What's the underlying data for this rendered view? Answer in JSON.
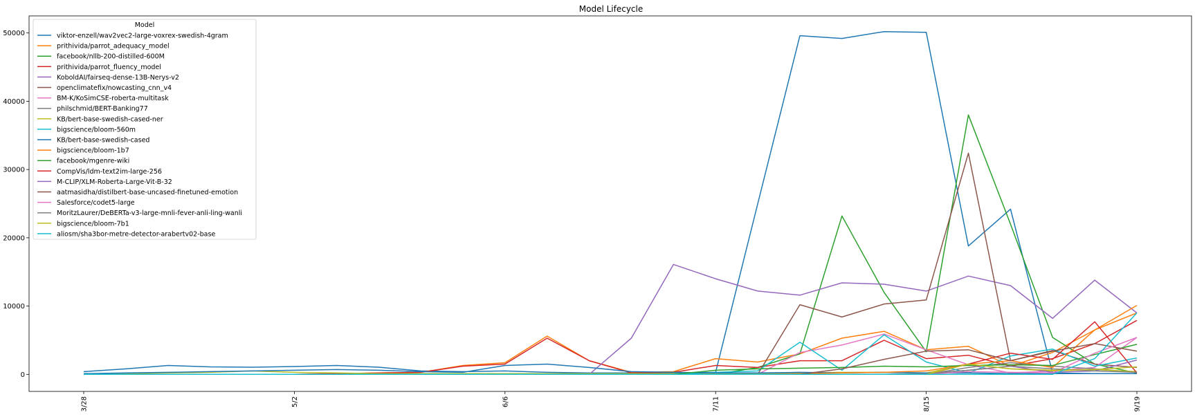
{
  "chart_data": {
    "type": "line",
    "title": "Model Lifecycle",
    "xlabel": "",
    "ylabel": "",
    "legend_title": "Model",
    "legend_position": "upper-left",
    "grid": false,
    "ylim": [
      -2500,
      52500
    ],
    "yticks": [
      0,
      10000,
      20000,
      30000,
      40000,
      50000
    ],
    "ytick_labels": [
      "0",
      "10000",
      "20000",
      "30000",
      "40000",
      "50000"
    ],
    "x": [
      "3/28",
      "4/4",
      "4/11",
      "4/18",
      "4/25",
      "5/2",
      "5/9",
      "5/16",
      "5/23",
      "5/30",
      "6/6",
      "6/13",
      "6/20",
      "6/27",
      "7/4",
      "7/11",
      "7/18",
      "7/25",
      "8/1",
      "8/8",
      "8/15",
      "8/22",
      "8/29",
      "9/5",
      "9/12",
      "9/19"
    ],
    "xtick_labels": [
      "3/28",
      "5/2",
      "6/6",
      "7/11",
      "8/15",
      "9/19"
    ],
    "series": [
      {
        "name": "viktor-enzell/wav2vec2-large-voxrex-swedish-4gram",
        "color": "#1f77b4",
        "values": [
          400,
          800,
          1300,
          1100,
          1050,
          1150,
          1300,
          1050,
          500,
          400,
          500,
          300,
          200,
          200,
          200,
          300,
          25000,
          49600,
          49200,
          50200,
          50100,
          18800,
          24200,
          200,
          100,
          100
        ]
      },
      {
        "name": "prithivida/parrot_adequacy_model",
        "color": "#ff7f0e",
        "values": [
          0,
          0,
          0,
          0,
          0,
          0,
          100,
          200,
          300,
          1300,
          1700,
          5600,
          2000,
          300,
          400,
          2300,
          1800,
          3000,
          5300,
          6300,
          3600,
          4100,
          1200,
          3200,
          6500,
          9000
        ]
      },
      {
        "name": "facebook/nllb-200-distilled-600M",
        "color": "#2ca02c",
        "values": [
          0,
          0,
          0,
          0,
          0,
          0,
          0,
          0,
          0,
          0,
          0,
          0,
          0,
          0,
          0,
          0,
          1000,
          3000,
          23200,
          12000,
          3300,
          38000,
          22000,
          5400,
          1500,
          200
        ]
      },
      {
        "name": "prithivida/parrot_fluency_model",
        "color": "#d62728",
        "values": [
          0,
          0,
          0,
          0,
          0,
          0,
          100,
          200,
          300,
          1200,
          1500,
          5300,
          2000,
          200,
          300,
          1300,
          1000,
          2000,
          2000,
          5000,
          2300,
          2800,
          1200,
          2300,
          4500,
          7900
        ]
      },
      {
        "name": "KoboldAI/fairseq-dense-13B-Nerys-v2",
        "color": "#9467bd",
        "values": [
          0,
          0,
          0,
          0,
          0,
          0,
          0,
          0,
          0,
          0,
          0,
          0,
          0,
          5300,
          16100,
          14000,
          12200,
          11600,
          13400,
          13200,
          12200,
          14400,
          13000,
          8200,
          13800,
          9000
        ]
      },
      {
        "name": "openclimatefix/nowcasting_cnn_v4",
        "color": "#8c564b",
        "values": [
          0,
          0,
          0,
          0,
          0,
          0,
          0,
          0,
          0,
          0,
          0,
          0,
          0,
          0,
          0,
          0,
          0,
          10200,
          8400,
          10300,
          10900,
          32400,
          2000,
          3500,
          1500,
          1000
        ]
      },
      {
        "name": "BM-K/KoSimCSE-roberta-multitask",
        "color": "#e377c2",
        "values": [
          0,
          0,
          0,
          0,
          0,
          0,
          0,
          0,
          0,
          0,
          0,
          0,
          0,
          0,
          0,
          0,
          0,
          3200,
          4300,
          5900,
          3600,
          1400,
          200,
          500,
          1000,
          5400
        ]
      },
      {
        "name": "philschmid/BERT-Banking77",
        "color": "#7f7f7f",
        "values": [
          0,
          0,
          0,
          0,
          0,
          0,
          0,
          0,
          0,
          0,
          0,
          0,
          0,
          0,
          0,
          0,
          0,
          0,
          0,
          0,
          0,
          1000,
          1700,
          1200,
          800,
          300
        ]
      },
      {
        "name": "KB/bert-base-swedish-cased-ner",
        "color": "#bcbd22",
        "values": [
          100,
          100,
          200,
          300,
          500,
          300,
          200,
          100,
          100,
          100,
          100,
          100,
          100,
          100,
          100,
          100,
          100,
          200,
          300,
          300,
          200,
          1500,
          800,
          500,
          700,
          400
        ]
      },
      {
        "name": "bigscience/bloom-560m",
        "color": "#17becf",
        "values": [
          0,
          0,
          0,
          0,
          0,
          0,
          0,
          0,
          0,
          0,
          0,
          0,
          0,
          0,
          0,
          300,
          500,
          4700,
          600,
          5800,
          1800,
          200,
          2700,
          3700,
          1200,
          2400
        ]
      },
      {
        "name": "KB/bert-base-swedish-cased",
        "color": "#1f77b4",
        "values": [
          100,
          200,
          300,
          400,
          500,
          600,
          700,
          600,
          400,
          300,
          1300,
          1500,
          1000,
          400,
          300,
          200,
          200,
          300,
          200,
          300,
          200,
          200,
          100,
          100,
          100,
          100
        ]
      },
      {
        "name": "bigscience/bloom-1b7",
        "color": "#ff7f0e",
        "values": [
          0,
          0,
          0,
          0,
          0,
          0,
          0,
          0,
          0,
          0,
          0,
          0,
          0,
          0,
          0,
          0,
          0,
          100,
          200,
          300,
          500,
          1500,
          2000,
          1000,
          6500,
          10100
        ]
      },
      {
        "name": "facebook/mgenre-wiki",
        "color": "#2ca02c",
        "values": [
          0,
          0,
          0,
          0,
          0,
          0,
          0,
          0,
          0,
          0,
          0,
          0,
          0,
          0,
          0,
          600,
          800,
          900,
          1000,
          1200,
          1100,
          1300,
          1400,
          1300,
          2900,
          4400
        ]
      },
      {
        "name": "CompVis/ldm-text2im-large-256",
        "color": "#d62728",
        "values": [
          0,
          0,
          0,
          0,
          0,
          0,
          0,
          0,
          0,
          0,
          0,
          0,
          0,
          0,
          0,
          0,
          0,
          0,
          0,
          0,
          0,
          1500,
          3100,
          2200,
          7700,
          200
        ]
      },
      {
        "name": "M-CLIP/XLM-Roberta-Large-Vit-B-32",
        "color": "#9467bd",
        "values": [
          0,
          0,
          0,
          0,
          0,
          0,
          0,
          0,
          0,
          0,
          0,
          0,
          0,
          0,
          0,
          0,
          0,
          0,
          0,
          0,
          100,
          600,
          1200,
          300,
          500,
          2100
        ]
      },
      {
        "name": "aatmasidha/distilbert-base-uncased-finetuned-emotion",
        "color": "#8c564b",
        "values": [
          0,
          0,
          0,
          0,
          0,
          0,
          0,
          0,
          0,
          0,
          0,
          0,
          0,
          0,
          0,
          0,
          0,
          0,
          800,
          2200,
          3400,
          3600,
          2000,
          3400,
          4500,
          3400
        ]
      },
      {
        "name": "Salesforce/codet5-large",
        "color": "#e377c2",
        "values": [
          0,
          0,
          0,
          0,
          0,
          0,
          0,
          0,
          0,
          0,
          0,
          0,
          0,
          0,
          0,
          0,
          0,
          0,
          0,
          0,
          0,
          400,
          300,
          200,
          3100,
          5400
        ]
      },
      {
        "name": "MoritzLaurer/DeBERTa-v3-large-mnli-fever-anli-ling-wanli",
        "color": "#7f7f7f",
        "values": [
          0,
          0,
          0,
          0,
          0,
          0,
          0,
          0,
          0,
          0,
          0,
          0,
          0,
          0,
          0,
          0,
          0,
          0,
          0,
          0,
          100,
          600,
          1200,
          800,
          500,
          300
        ]
      },
      {
        "name": "bigscience/bloom-7b1",
        "color": "#bcbd22",
        "values": [
          0,
          0,
          0,
          0,
          0,
          0,
          0,
          0,
          0,
          0,
          0,
          0,
          0,
          0,
          0,
          0,
          0,
          0,
          0,
          0,
          0,
          1500,
          800,
          600,
          700,
          1100
        ]
      },
      {
        "name": "aliosm/sha3bor-metre-detector-arabertv02-base",
        "color": "#17becf",
        "values": [
          0,
          0,
          0,
          0,
          0,
          0,
          0,
          0,
          0,
          0,
          0,
          0,
          0,
          0,
          0,
          0,
          0,
          0,
          0,
          0,
          0,
          0,
          0,
          0,
          2300,
          9000
        ]
      }
    ]
  }
}
